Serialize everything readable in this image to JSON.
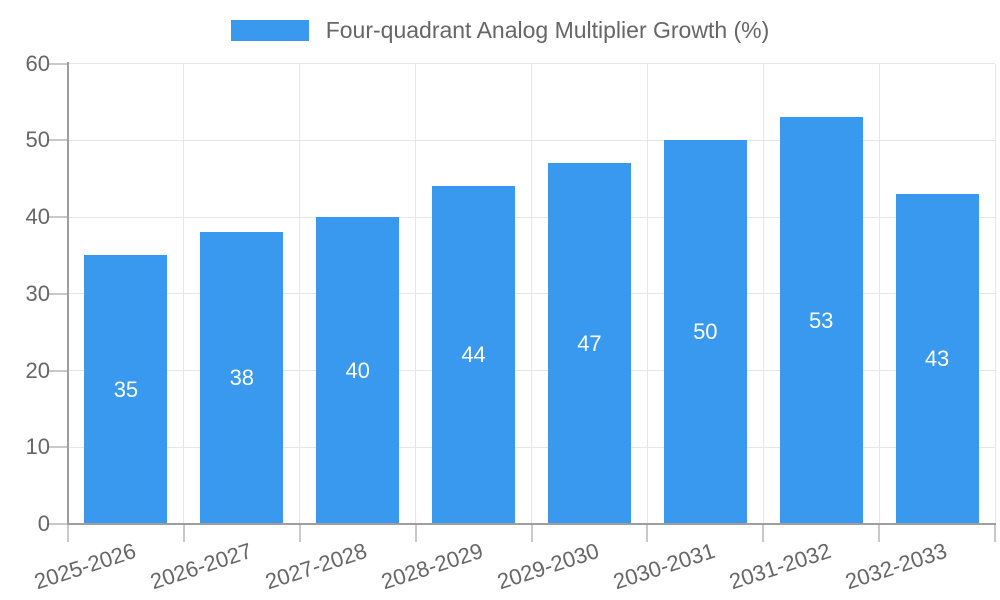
{
  "legend": {
    "label": "Four-quadrant Analog Multiplier Growth (%)"
  },
  "chart_data": {
    "type": "bar",
    "title": "Four-quadrant Analog Multiplier Growth (%)",
    "categories": [
      "2025-2026",
      "2026-2027",
      "2027-2028",
      "2028-2029",
      "2029-2030",
      "2030-2031",
      "2031-2032",
      "2032-2033"
    ],
    "values": [
      35,
      38,
      40,
      44,
      47,
      50,
      53,
      43
    ],
    "xlabel": "",
    "ylabel": "",
    "ylim": [
      0,
      60
    ],
    "yticks": [
      0,
      10,
      20,
      30,
      40,
      50,
      60
    ],
    "grid": true,
    "legend_position": "top-center",
    "bar_value_labels_shown": true
  },
  "colors": {
    "bar": "#3999ee",
    "bar_value_text": "#ffffff",
    "axis_line": "#9e9e9e",
    "gridline": "#e6e6e6",
    "tick_mark": "#c9c9c9",
    "tick_text": "#666666",
    "legend_text": "#666666"
  }
}
